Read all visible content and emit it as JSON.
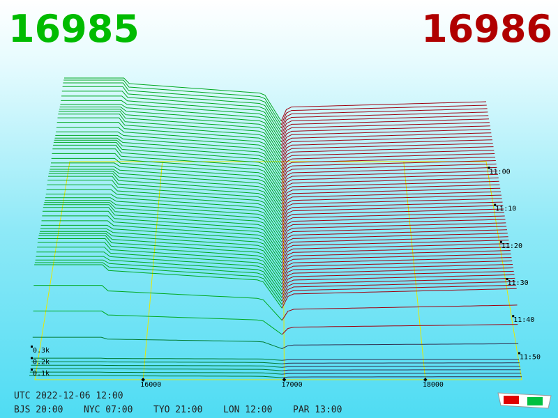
{
  "header": {
    "bid": 16985,
    "ask": 16986
  },
  "chart_data": {
    "type": "depth3d",
    "xlim": [
      15233,
      18683
    ],
    "xticks": [
      16000,
      17000,
      18000
    ],
    "time_labels": [
      "11:00",
      "11:10",
      "11:20",
      "11:30",
      "11:40",
      "11:50"
    ],
    "volume_labels": [
      "0.1k",
      "0.2k",
      "0.3k"
    ]
  },
  "footer": {
    "utc": "UTC 2022-12-06 12:00",
    "clocks": [
      "BJS 20:00",
      "NYC 07:00",
      "TYO 21:00",
      "LON 12:00",
      "PAR 13:00"
    ]
  }
}
